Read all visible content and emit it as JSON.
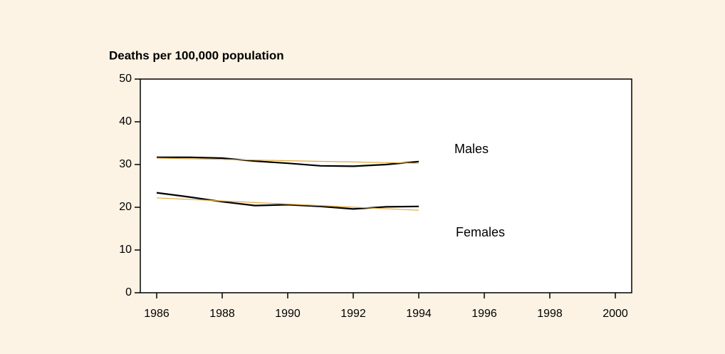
{
  "chart_data": {
    "type": "line",
    "title": "Deaths per 100,000  population",
    "x": [
      1986,
      1987,
      1988,
      1989,
      1990,
      1991,
      1992,
      1993,
      1994
    ],
    "series": [
      {
        "name": "Males",
        "color": "#000000",
        "values": [
          31.7,
          31.7,
          31.5,
          30.8,
          30.3,
          29.7,
          29.6,
          30.0,
          30.7
        ]
      },
      {
        "color": "#e0a83a",
        "values": [
          31.5,
          31.35,
          31.2,
          31.05,
          30.9,
          30.75,
          30.6,
          30.45,
          30.3
        ]
      },
      {
        "name": "Females",
        "color": "#000000",
        "values": [
          23.4,
          22.4,
          21.3,
          20.4,
          20.6,
          20.2,
          19.6,
          20.1,
          20.2
        ]
      },
      {
        "color": "#e0a83a",
        "values": [
          22.2,
          21.84,
          21.48,
          21.11,
          20.75,
          20.39,
          20.02,
          19.66,
          19.3
        ]
      }
    ],
    "xlim": [
      1985.5,
      2000.5
    ],
    "xticks": [
      1986,
      1988,
      1990,
      1992,
      1994,
      1996,
      1998,
      2000
    ],
    "ylim": [
      0,
      50
    ],
    "yticks": [
      0,
      10,
      20,
      30,
      40,
      50
    ]
  }
}
